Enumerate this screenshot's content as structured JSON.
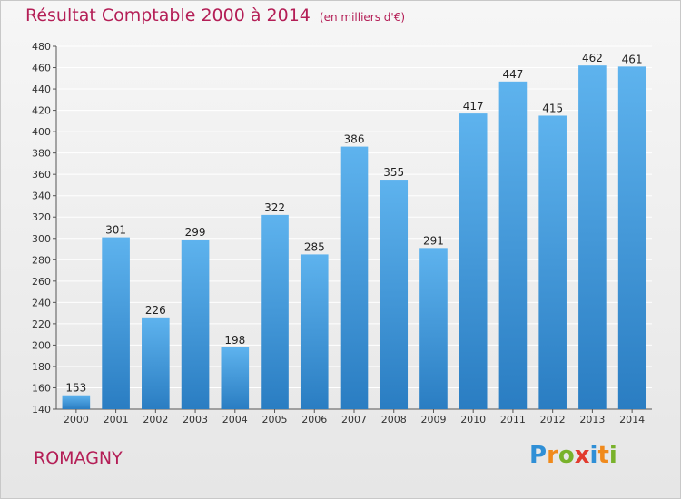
{
  "header": {
    "title": "Résultat Comptable 2000 à 2014",
    "unit": "(en milliers d'€)"
  },
  "footer": {
    "place": "ROMAGNY",
    "logo": [
      "P",
      "r",
      "o",
      "x",
      "i",
      "t",
      "i"
    ],
    "logo_colors": [
      "#2f8fd6",
      "#f08a1c",
      "#79b22b",
      "#e23b2e",
      "#2f8fd6",
      "#f08a1c",
      "#79b22b"
    ]
  },
  "colors": {
    "title": "#b41e56",
    "bar_top": "#5eb3ee",
    "bar_bottom": "#2a7dc2",
    "grid": "#ffffff"
  },
  "chart_data": {
    "type": "bar",
    "title": "Résultat Comptable 2000 à 2014",
    "ylabel": "(en milliers d'€)",
    "xlabel": "",
    "categories": [
      "2000",
      "2001",
      "2002",
      "2003",
      "2004",
      "2005",
      "2006",
      "2007",
      "2008",
      "2009",
      "2010",
      "2011",
      "2012",
      "2013",
      "2014"
    ],
    "values": [
      153,
      301,
      226,
      299,
      198,
      322,
      285,
      386,
      355,
      291,
      417,
      447,
      415,
      462,
      461
    ],
    "ylim": [
      140,
      480
    ],
    "yticks": [
      140,
      160,
      180,
      200,
      220,
      240,
      260,
      280,
      300,
      320,
      340,
      360,
      380,
      400,
      420,
      440,
      460,
      480
    ],
    "grid": true,
    "legend": "none"
  }
}
